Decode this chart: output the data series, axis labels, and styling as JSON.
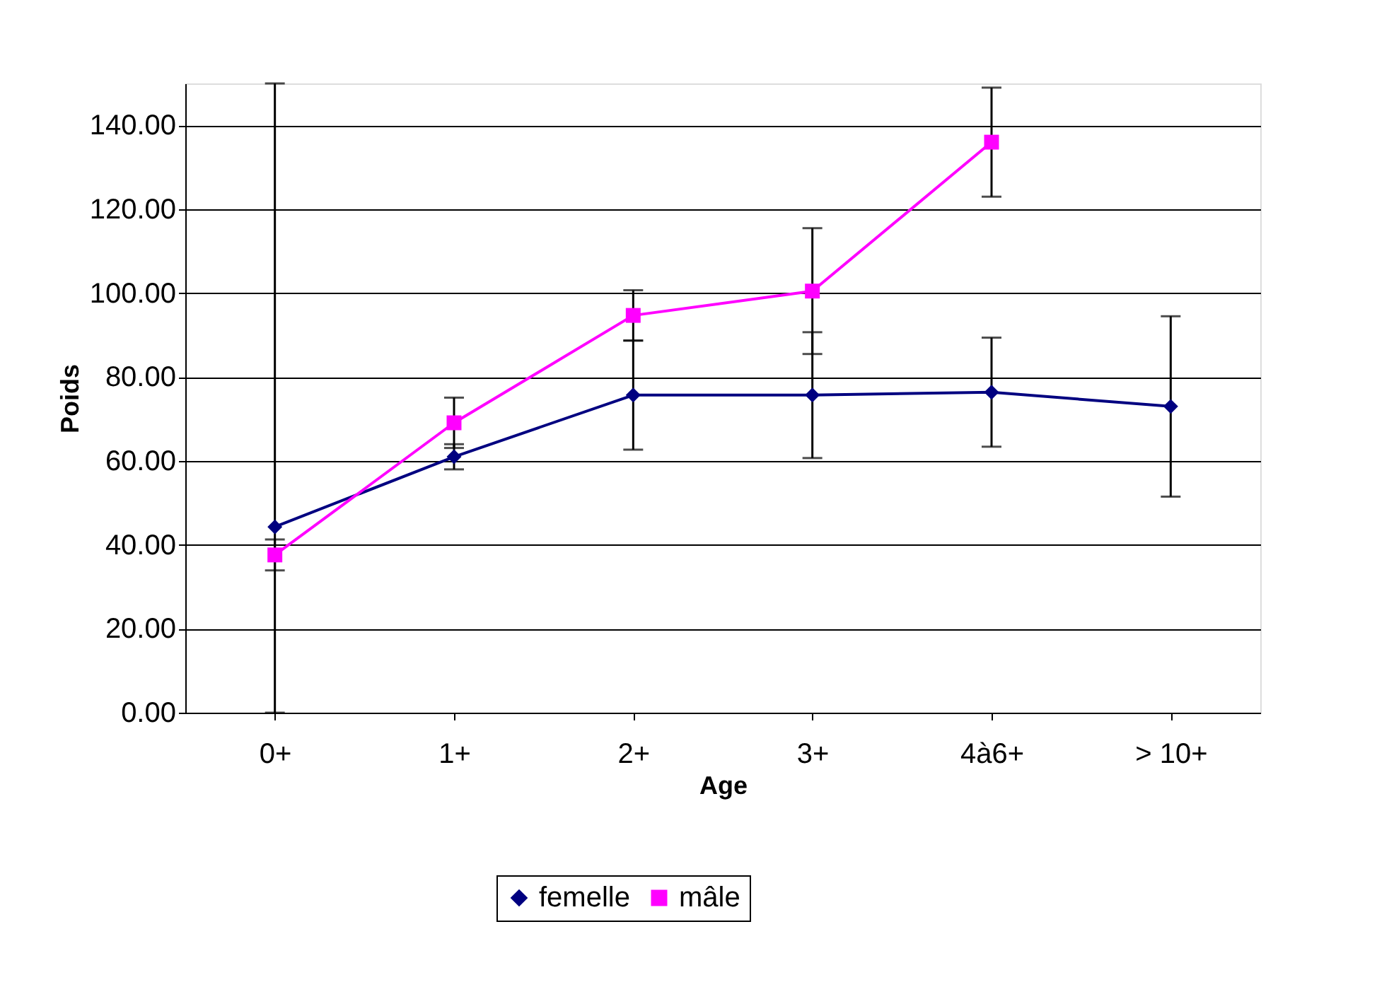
{
  "chart_data": {
    "type": "line",
    "xlabel": "Age",
    "ylabel": "Poids",
    "categories": [
      "0+",
      "1+",
      "2+",
      "3+",
      "4à6+",
      "> 10+"
    ],
    "series": [
      {
        "name": "femelle",
        "color": "#000080",
        "marker": "diamond",
        "values": [
          44.3,
          61,
          75.7,
          75.7,
          76.4,
          73
        ],
        "errors": [
          [
            0,
            150
          ],
          3,
          13,
          15,
          13,
          21.5
        ]
      },
      {
        "name": "mâle",
        "color": "#ff00ff",
        "marker": "square",
        "values": [
          37.6,
          69.1,
          94.7,
          100.5,
          136,
          null
        ],
        "errors": [
          3.7,
          6,
          6,
          15,
          13,
          null
        ]
      }
    ],
    "ylim": [
      0,
      150
    ],
    "yticks": [
      {
        "value": 0,
        "label": "0.00"
      },
      {
        "value": 20,
        "label": "20.00"
      },
      {
        "value": 40,
        "label": "40.00"
      },
      {
        "value": 60,
        "label": "60.00"
      },
      {
        "value": 80,
        "label": "80.00"
      },
      {
        "value": 100,
        "label": "100.00"
      },
      {
        "value": 120,
        "label": "120.00"
      },
      {
        "value": 140,
        "label": "140.00"
      }
    ],
    "grid": "y",
    "legend": "bottom"
  }
}
